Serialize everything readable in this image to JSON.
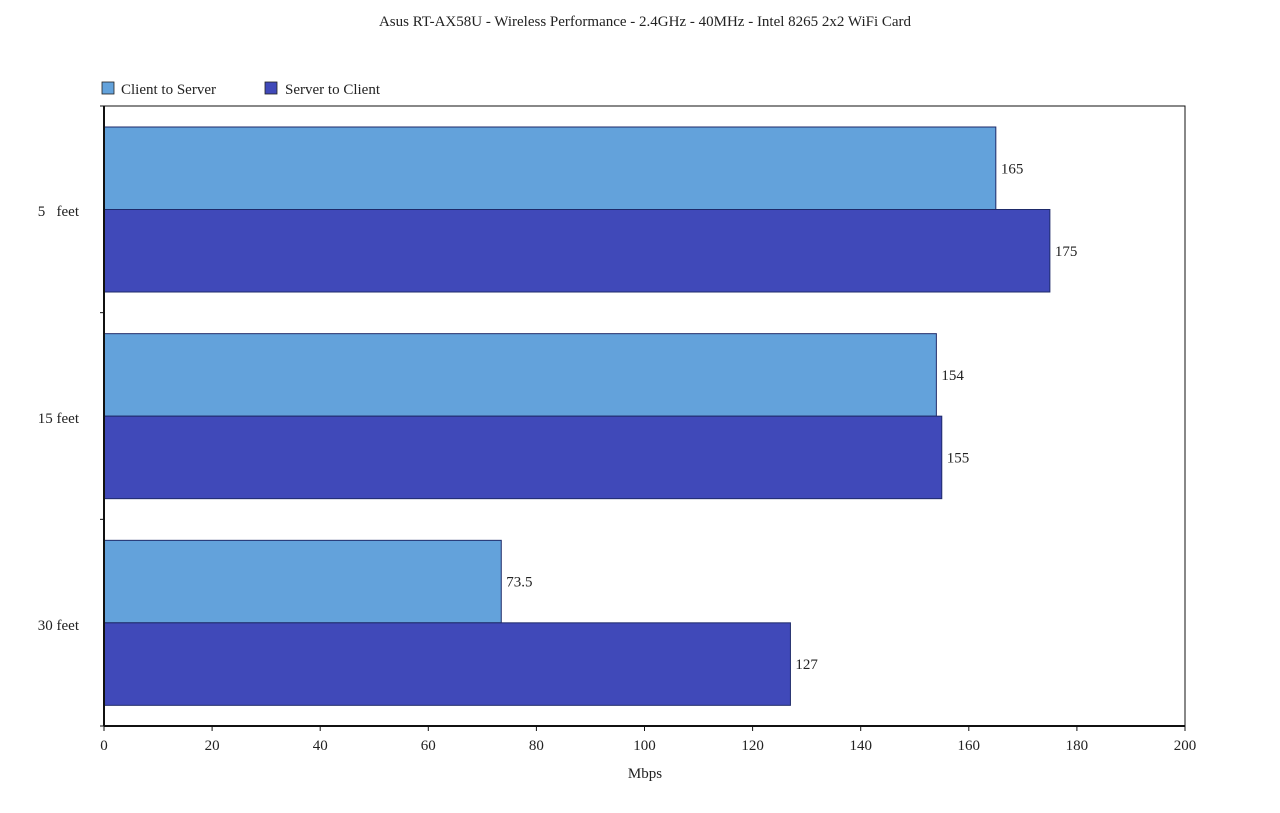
{
  "chart_data": {
    "type": "bar",
    "orientation": "horizontal",
    "title": "Asus RT-AX58U - Wireless Performance - 2.4GHz - 40MHz - Intel 8265 2x2 WiFi Card",
    "xlabel": "Mbps",
    "ylabel": "",
    "categories": [
      "5   feet",
      "15 feet",
      "30 feet"
    ],
    "series": [
      {
        "name": "Client to Server",
        "values": [
          165,
          154,
          73.5
        ],
        "value_labels": [
          "165",
          "154",
          "73.5"
        ],
        "color": "#63a2db"
      },
      {
        "name": "Server to Client",
        "values": [
          175,
          155,
          127
        ],
        "value_labels": [
          "175",
          "155",
          "127"
        ],
        "color": "#4049b9"
      }
    ],
    "xlim": [
      0,
      200
    ],
    "xticks": [
      0,
      20,
      40,
      60,
      80,
      100,
      120,
      140,
      160,
      180,
      200
    ],
    "grid": false,
    "legend_position": "top-left"
  }
}
